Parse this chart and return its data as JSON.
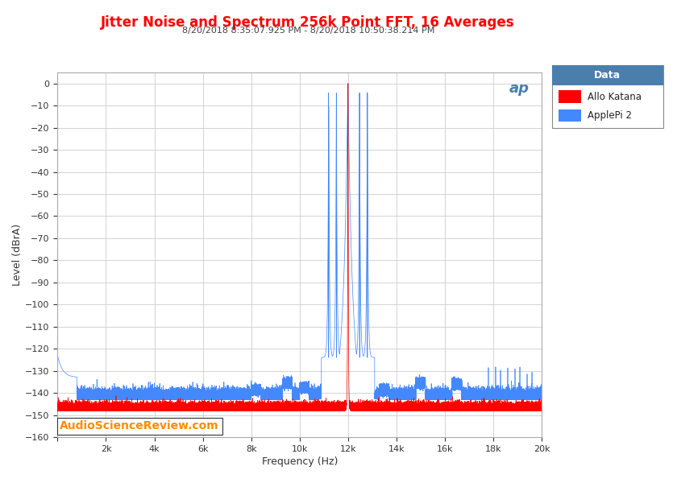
{
  "title": "Jitter Noise and Spectrum 256k Point FFT, 16 Averages",
  "subtitle": "8/20/2018 8:35:07.925 PM - 8/20/2018 10:50:38.214 PM",
  "xlabel": "Frequency (Hz)",
  "ylabel": "Level (dBrA)",
  "xlim": [
    0,
    20000
  ],
  "ylim": [
    -160,
    5
  ],
  "yticks": [
    0,
    -10,
    -20,
    -30,
    -40,
    -50,
    -60,
    -70,
    -80,
    -90,
    -100,
    -110,
    -120,
    -130,
    -140,
    -150,
    -160
  ],
  "xticks": [
    0,
    2000,
    4000,
    6000,
    8000,
    10000,
    12000,
    14000,
    16000,
    18000,
    20000
  ],
  "xtick_labels": [
    "",
    "2k",
    "4k",
    "6k",
    "8k",
    "10k",
    "12k",
    "14k",
    "16k",
    "18k",
    "20k"
  ],
  "title_color": "#FF0000",
  "subtitle_color": "#404040",
  "legend_title": "Data",
  "legend_title_bg": "#4a7fad",
  "series": [
    {
      "label": "Allo Katana",
      "color": "#FF0000"
    },
    {
      "label": "ApplePi 2",
      "color": "#4488FF"
    }
  ],
  "watermark": "AudioScienceReview.com",
  "watermark_color": "#FF8C00",
  "ap_logo_color": "#4a7fad",
  "background_color": "#FFFFFF",
  "plot_bg_color": "#FFFFFF",
  "grid_color": "#CCCCCC",
  "peak_freq": 12000,
  "red_floor": -148,
  "blue_floor": -143,
  "red_std": 1.5,
  "blue_std": 2.0
}
